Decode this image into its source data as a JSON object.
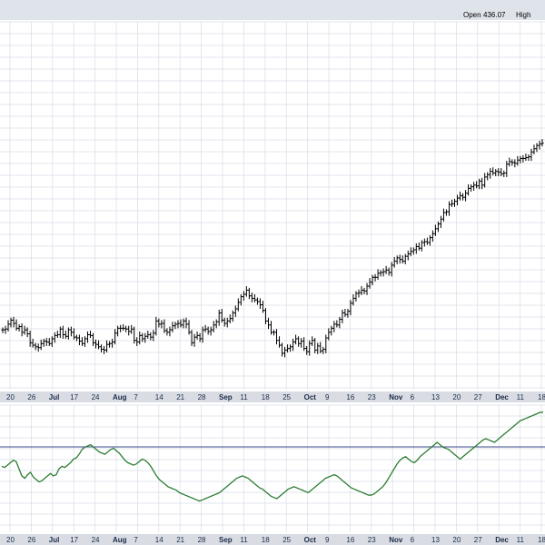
{
  "header": {
    "open_label": "Open",
    "open_value": "436.07",
    "high_label": "High"
  },
  "colors": {
    "background": "#ffffff",
    "grid": "#d8dde6",
    "axis_band": "#d9dde3",
    "price_bars": "#000000",
    "indicator_line": "#2e7d32",
    "reference_line": "#3b4a8a"
  },
  "chart_data": [
    {
      "type": "ohlc",
      "grid": true,
      "categories": [
        "20",
        "26",
        "Jul",
        "17",
        "24",
        "Aug",
        "7",
        "14",
        "21",
        "28",
        "Sep",
        "11",
        "18",
        "25",
        "Oct",
        "9",
        "16",
        "23",
        "Nov",
        "6",
        "13",
        "20",
        "27",
        "Dec",
        "11",
        "18"
      ],
      "month_labels": [
        "Jul",
        "Aug",
        "Sep",
        "Oct",
        "Nov",
        "Dec"
      ],
      "close": [
        229,
        230,
        236,
        241,
        237,
        231,
        233,
        226,
        229,
        224,
        213,
        210,
        208,
        207,
        212,
        215,
        214,
        212,
        218,
        222,
        223,
        230,
        223,
        221,
        229,
        226,
        220,
        219,
        215,
        212,
        218,
        223,
        222,
        213,
        211,
        208,
        205,
        204,
        211,
        212,
        214,
        225,
        231,
        231,
        231,
        230,
        227,
        230,
        216,
        214,
        222,
        218,
        221,
        223,
        220,
        225,
        240,
        236,
        237,
        228,
        226,
        229,
        234,
        236,
        237,
        235,
        240,
        236,
        226,
        213,
        220,
        222,
        218,
        229,
        230,
        227,
        229,
        235,
        239,
        250,
        241,
        237,
        240,
        243,
        250,
        255,
        263,
        270,
        273,
        278,
        271,
        268,
        266,
        264,
        260,
        253,
        240,
        235,
        226,
        226,
        216,
        210,
        200,
        204,
        206,
        208,
        214,
        218,
        212,
        215,
        206,
        202,
        212,
        216,
        204,
        209,
        203,
        205,
        219,
        226,
        231,
        236,
        235,
        242,
        250,
        248,
        252,
        262,
        268,
        274,
        275,
        278,
        277,
        283,
        288,
        294,
        294,
        299,
        300,
        301,
        303,
        300,
        309,
        314,
        318,
        316,
        314,
        320,
        323,
        326,
        328,
        332,
        330,
        337,
        338,
        337,
        343,
        348,
        354,
        360,
        366,
        374,
        375,
        384,
        385,
        388,
        392,
        395,
        393,
        398,
        404,
        406,
        408,
        407,
        413,
        408,
        418,
        421,
        425,
        423,
        425,
        424,
        422,
        423,
        434,
        437,
        436,
        435,
        439,
        441,
        441,
        442,
        443,
        449,
        453,
        457,
        459,
        460
      ],
      "indicator_series": "bottom panel line",
      "reference_line": true
    }
  ],
  "x_axis": {
    "ticks": [
      "20",
      "26",
      "Jul",
      "17",
      "24",
      "Aug",
      "7",
      "14",
      "21",
      "28",
      "Sep",
      "11",
      "18",
      "25",
      "Oct",
      "9",
      "16",
      "23",
      "Nov",
      "6",
      "13",
      "20",
      "27",
      "Dec",
      "11",
      "18"
    ]
  },
  "indicator_data": {
    "values": [
      52,
      51,
      53,
      55,
      57,
      56,
      50,
      44,
      42,
      45,
      47,
      43,
      41,
      39,
      40,
      42,
      44,
      46,
      44,
      45,
      50,
      52,
      51,
      53,
      55,
      58,
      59,
      62,
      66,
      68,
      69,
      70,
      68,
      66,
      64,
      63,
      62,
      64,
      66,
      67,
      65,
      63,
      60,
      57,
      55,
      54,
      53,
      54,
      56,
      58,
      57,
      55,
      52,
      48,
      44,
      41,
      39,
      37,
      35,
      34,
      33,
      32,
      30,
      29,
      28,
      27,
      26,
      25,
      24,
      23,
      24,
      25,
      26,
      27,
      28,
      29,
      30,
      32,
      34,
      36,
      38,
      40,
      42,
      43,
      44,
      43,
      42,
      40,
      38,
      36,
      34,
      33,
      31,
      29,
      27,
      26,
      25,
      27,
      29,
      31,
      33,
      34,
      35,
      34,
      33,
      32,
      31,
      30,
      32,
      34,
      36,
      38,
      40,
      42,
      43,
      44,
      45,
      44,
      42,
      40,
      38,
      36,
      34,
      33,
      32,
      31,
      30,
      29,
      28,
      28,
      29,
      31,
      33,
      35,
      38,
      42,
      46,
      50,
      54,
      57,
      59,
      60,
      58,
      56,
      55,
      57,
      60,
      62,
      64,
      66,
      68,
      70,
      72,
      70,
      68,
      67,
      66,
      64,
      62,
      60,
      58,
      60,
      62,
      64,
      66,
      68,
      70,
      72,
      74,
      75,
      74,
      73,
      72,
      74,
      76,
      78,
      80,
      82,
      84,
      86,
      88,
      90,
      91,
      92,
      93,
      94,
      95,
      96,
      97,
      97
    ]
  }
}
